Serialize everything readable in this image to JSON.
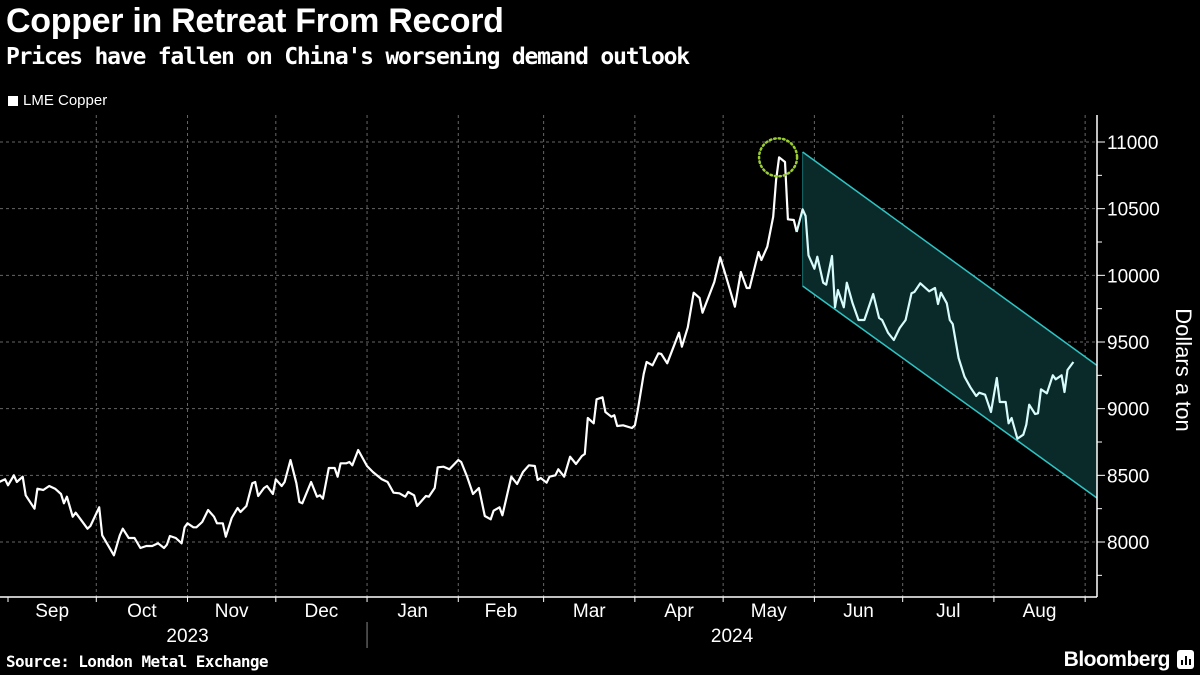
{
  "header": {
    "title": "Copper in Retreat From Record",
    "subtitle": "Prices have fallen on China's worsening demand outlook"
  },
  "footer": {
    "source": "Source: London Metal Exchange",
    "brand": "Bloomberg"
  },
  "colors": {
    "background": "#000000",
    "line": "#ffffff",
    "line_in_channel": "#d8fbfb",
    "channel_edge": "#2fc4c4",
    "channel_fill": "#0a2a2a",
    "peak_marker": "#9acd32",
    "grid": "#666666"
  },
  "chart_data": {
    "type": "line",
    "title": "Copper in Retreat From Record",
    "subtitle": "Prices have fallen on China's worsening demand outlook",
    "ylabel": "Dollars a ton",
    "xlabel": "",
    "ylim": [
      7700,
      11250
    ],
    "y_ticks": [
      8000,
      8500,
      9000,
      9500,
      10000,
      10500,
      11000
    ],
    "y_tick_labels": [
      "8000",
      "8500",
      "9000",
      "9500",
      "10000",
      "10500",
      "11000"
    ],
    "y_axis_side": "right",
    "xlim": [
      "2023-08-29",
      "2024-09-05"
    ],
    "x_month_labels": [
      {
        "label": "Sep",
        "start": "2023-09-01"
      },
      {
        "label": "Oct",
        "start": "2023-10-01"
      },
      {
        "label": "Nov",
        "start": "2023-11-01"
      },
      {
        "label": "Dec",
        "start": "2023-12-01"
      },
      {
        "label": "Jan",
        "start": "2024-01-01"
      },
      {
        "label": "Feb",
        "start": "2024-02-01"
      },
      {
        "label": "Mar",
        "start": "2024-03-01"
      },
      {
        "label": "Apr",
        "start": "2024-04-01"
      },
      {
        "label": "May",
        "start": "2024-05-01"
      },
      {
        "label": "Jun",
        "start": "2024-06-01"
      },
      {
        "label": "Jul",
        "start": "2024-07-01"
      },
      {
        "label": "Aug",
        "start": "2024-08-01"
      }
    ],
    "x_month_end": "2024-09-01",
    "x_year_labels": [
      "2023",
      "2024"
    ],
    "grid": true,
    "legend": {
      "placement": "top-left",
      "entries": [
        "LME Copper"
      ]
    },
    "series": [
      {
        "name": "LME Copper",
        "points": [
          [
            "2023-08-29",
            8450
          ],
          [
            "2023-08-31",
            8470
          ],
          [
            "2023-09-01",
            8425
          ],
          [
            "2023-09-03",
            8500
          ],
          [
            "2023-09-04",
            8450
          ],
          [
            "2023-09-06",
            8490
          ],
          [
            "2023-09-07",
            8350
          ],
          [
            "2023-09-10",
            8250
          ],
          [
            "2023-09-11",
            8400
          ],
          [
            "2023-09-13",
            8390
          ],
          [
            "2023-09-15",
            8420
          ],
          [
            "2023-09-17",
            8400
          ],
          [
            "2023-09-19",
            8360
          ],
          [
            "2023-09-20",
            8290
          ],
          [
            "2023-09-21",
            8340
          ],
          [
            "2023-09-23",
            8190
          ],
          [
            "2023-09-24",
            8220
          ],
          [
            "2023-09-28",
            8100
          ],
          [
            "2023-09-29",
            8120
          ],
          [
            "2023-10-02",
            8260
          ],
          [
            "2023-10-03",
            8050
          ],
          [
            "2023-10-07",
            7900
          ],
          [
            "2023-10-09",
            8050
          ],
          [
            "2023-10-10",
            8100
          ],
          [
            "2023-10-12",
            8030
          ],
          [
            "2023-10-14",
            8030
          ],
          [
            "2023-10-16",
            7955
          ],
          [
            "2023-10-18",
            7970
          ],
          [
            "2023-10-20",
            7970
          ],
          [
            "2023-10-22",
            7990
          ],
          [
            "2023-10-24",
            7955
          ],
          [
            "2023-10-25",
            7980
          ],
          [
            "2023-10-26",
            8045
          ],
          [
            "2023-10-28",
            8030
          ],
          [
            "2023-10-30",
            7990
          ],
          [
            "2023-10-31",
            8110
          ],
          [
            "2023-11-01",
            8140
          ],
          [
            "2023-11-03",
            8110
          ],
          [
            "2023-11-04",
            8110
          ],
          [
            "2023-11-06",
            8150
          ],
          [
            "2023-11-08",
            8240
          ],
          [
            "2023-11-10",
            8190
          ],
          [
            "2023-11-11",
            8140
          ],
          [
            "2023-11-13",
            8140
          ],
          [
            "2023-11-14",
            8040
          ],
          [
            "2023-11-16",
            8180
          ],
          [
            "2023-11-18",
            8255
          ],
          [
            "2023-11-19",
            8225
          ],
          [
            "2023-11-21",
            8270
          ],
          [
            "2023-11-23",
            8440
          ],
          [
            "2023-11-24",
            8450
          ],
          [
            "2023-11-25",
            8345
          ],
          [
            "2023-11-27",
            8405
          ],
          [
            "2023-11-28",
            8420
          ],
          [
            "2023-11-30",
            8360
          ],
          [
            "2023-12-01",
            8470
          ],
          [
            "2023-12-03",
            8420
          ],
          [
            "2023-12-04",
            8450
          ],
          [
            "2023-12-06",
            8615
          ],
          [
            "2023-12-08",
            8440
          ],
          [
            "2023-12-09",
            8300
          ],
          [
            "2023-12-10",
            8290
          ],
          [
            "2023-12-13",
            8450
          ],
          [
            "2023-12-15",
            8340
          ],
          [
            "2023-12-16",
            8350
          ],
          [
            "2023-12-17",
            8325
          ],
          [
            "2023-12-19",
            8555
          ],
          [
            "2023-12-21",
            8555
          ],
          [
            "2023-12-22",
            8490
          ],
          [
            "2023-12-23",
            8590
          ],
          [
            "2023-12-25",
            8590
          ],
          [
            "2023-12-26",
            8600
          ],
          [
            "2023-12-27",
            8575
          ],
          [
            "2023-12-29",
            8690
          ],
          [
            "2024-01-01",
            8570
          ],
          [
            "2024-01-03",
            8525
          ],
          [
            "2024-01-06",
            8470
          ],
          [
            "2024-01-08",
            8450
          ],
          [
            "2024-01-10",
            8370
          ],
          [
            "2024-01-12",
            8365
          ],
          [
            "2024-01-14",
            8340
          ],
          [
            "2024-01-15",
            8375
          ],
          [
            "2024-01-17",
            8350
          ],
          [
            "2024-01-18",
            8270
          ],
          [
            "2024-01-21",
            8345
          ],
          [
            "2024-01-22",
            8340
          ],
          [
            "2024-01-24",
            8405
          ],
          [
            "2024-01-25",
            8560
          ],
          [
            "2024-01-27",
            8565
          ],
          [
            "2024-01-29",
            8545
          ],
          [
            "2024-02-01",
            8615
          ],
          [
            "2024-02-02",
            8600
          ],
          [
            "2024-02-04",
            8490
          ],
          [
            "2024-02-06",
            8360
          ],
          [
            "2024-02-08",
            8405
          ],
          [
            "2024-02-10",
            8195
          ],
          [
            "2024-02-12",
            8170
          ],
          [
            "2024-02-13",
            8235
          ],
          [
            "2024-02-15",
            8260
          ],
          [
            "2024-02-16",
            8200
          ],
          [
            "2024-02-19",
            8490
          ],
          [
            "2024-02-21",
            8435
          ],
          [
            "2024-02-23",
            8525
          ],
          [
            "2024-02-25",
            8575
          ],
          [
            "2024-02-27",
            8570
          ],
          [
            "2024-02-28",
            8465
          ],
          [
            "2024-02-29",
            8480
          ],
          [
            "2024-03-02",
            8445
          ],
          [
            "2024-03-03",
            8490
          ],
          [
            "2024-03-05",
            8500
          ],
          [
            "2024-03-06",
            8545
          ],
          [
            "2024-03-08",
            8490
          ],
          [
            "2024-03-10",
            8640
          ],
          [
            "2024-03-12",
            8585
          ],
          [
            "2024-03-14",
            8645
          ],
          [
            "2024-03-15",
            8660
          ],
          [
            "2024-03-16",
            8930
          ],
          [
            "2024-03-18",
            8890
          ],
          [
            "2024-03-19",
            9070
          ],
          [
            "2024-03-21",
            9085
          ],
          [
            "2024-03-22",
            8975
          ],
          [
            "2024-03-24",
            8940
          ],
          [
            "2024-03-25",
            8950
          ],
          [
            "2024-03-26",
            8870
          ],
          [
            "2024-03-28",
            8875
          ],
          [
            "2024-03-31",
            8855
          ],
          [
            "2024-04-01",
            8875
          ],
          [
            "2024-04-02",
            8990
          ],
          [
            "2024-04-04",
            9260
          ],
          [
            "2024-04-05",
            9350
          ],
          [
            "2024-04-07",
            9325
          ],
          [
            "2024-04-09",
            9415
          ],
          [
            "2024-04-10",
            9410
          ],
          [
            "2024-04-12",
            9340
          ],
          [
            "2024-04-16",
            9570
          ],
          [
            "2024-04-17",
            9465
          ],
          [
            "2024-04-19",
            9610
          ],
          [
            "2024-04-21",
            9870
          ],
          [
            "2024-04-23",
            9830
          ],
          [
            "2024-04-24",
            9720
          ],
          [
            "2024-04-28",
            9950
          ],
          [
            "2024-04-30",
            10135
          ],
          [
            "2024-05-02",
            9990
          ],
          [
            "2024-05-05",
            9765
          ],
          [
            "2024-05-07",
            10025
          ],
          [
            "2024-05-09",
            9905
          ],
          [
            "2024-05-10",
            9905
          ],
          [
            "2024-05-13",
            10175
          ],
          [
            "2024-05-14",
            10115
          ],
          [
            "2024-05-16",
            10215
          ],
          [
            "2024-05-18",
            10440
          ],
          [
            "2024-05-19",
            10715
          ],
          [
            "2024-05-20",
            10885
          ],
          [
            "2024-05-22",
            10850
          ],
          [
            "2024-05-23",
            10420
          ],
          [
            "2024-05-25",
            10415
          ],
          [
            "2024-05-26",
            10325
          ],
          [
            "2024-05-28",
            10495
          ],
          [
            "2024-05-29",
            10445
          ],
          [
            "2024-05-30",
            10150
          ],
          [
            "2024-06-01",
            10050
          ],
          [
            "2024-06-02",
            10140
          ],
          [
            "2024-06-04",
            9945
          ],
          [
            "2024-06-05",
            9930
          ],
          [
            "2024-06-07",
            10145
          ],
          [
            "2024-06-08",
            9760
          ],
          [
            "2024-06-09",
            9890
          ],
          [
            "2024-06-11",
            9760
          ],
          [
            "2024-06-12",
            9945
          ],
          [
            "2024-06-14",
            9790
          ],
          [
            "2024-06-16",
            9665
          ],
          [
            "2024-06-18",
            9665
          ],
          [
            "2024-06-21",
            9860
          ],
          [
            "2024-06-23",
            9680
          ],
          [
            "2024-06-24",
            9665
          ],
          [
            "2024-06-26",
            9570
          ],
          [
            "2024-06-28",
            9515
          ],
          [
            "2024-06-30",
            9605
          ],
          [
            "2024-07-02",
            9665
          ],
          [
            "2024-07-04",
            9865
          ],
          [
            "2024-07-05",
            9875
          ],
          [
            "2024-07-07",
            9940
          ],
          [
            "2024-07-10",
            9880
          ],
          [
            "2024-07-12",
            9905
          ],
          [
            "2024-07-13",
            9785
          ],
          [
            "2024-07-14",
            9870
          ],
          [
            "2024-07-16",
            9790
          ],
          [
            "2024-07-17",
            9665
          ],
          [
            "2024-07-18",
            9635
          ],
          [
            "2024-07-20",
            9380
          ],
          [
            "2024-07-22",
            9240
          ],
          [
            "2024-07-24",
            9160
          ],
          [
            "2024-07-26",
            9095
          ],
          [
            "2024-07-27",
            9120
          ],
          [
            "2024-07-29",
            9105
          ],
          [
            "2024-07-31",
            8975
          ],
          [
            "2024-08-02",
            9230
          ],
          [
            "2024-08-03",
            9050
          ],
          [
            "2024-08-05",
            9050
          ],
          [
            "2024-08-06",
            8890
          ],
          [
            "2024-08-07",
            8930
          ],
          [
            "2024-08-09",
            8775
          ],
          [
            "2024-08-11",
            8805
          ],
          [
            "2024-08-12",
            8880
          ],
          [
            "2024-08-13",
            9030
          ],
          [
            "2024-08-15",
            8960
          ],
          [
            "2024-08-16",
            8965
          ],
          [
            "2024-08-17",
            9145
          ],
          [
            "2024-08-19",
            9115
          ],
          [
            "2024-08-21",
            9250
          ],
          [
            "2024-08-22",
            9220
          ],
          [
            "2024-08-24",
            9250
          ],
          [
            "2024-08-25",
            9125
          ],
          [
            "2024-08-26",
            9290
          ],
          [
            "2024-08-28",
            9350
          ]
        ]
      }
    ],
    "annotations": {
      "peak_marker": {
        "date": "2024-05-20",
        "value": 10885,
        "style": "dotted-circle"
      },
      "downtrend_channel": {
        "start": "2024-05-28",
        "end": "2024-09-05",
        "upper": [
          10925,
          9325
        ],
        "lower": [
          9920,
          8330
        ]
      }
    }
  }
}
